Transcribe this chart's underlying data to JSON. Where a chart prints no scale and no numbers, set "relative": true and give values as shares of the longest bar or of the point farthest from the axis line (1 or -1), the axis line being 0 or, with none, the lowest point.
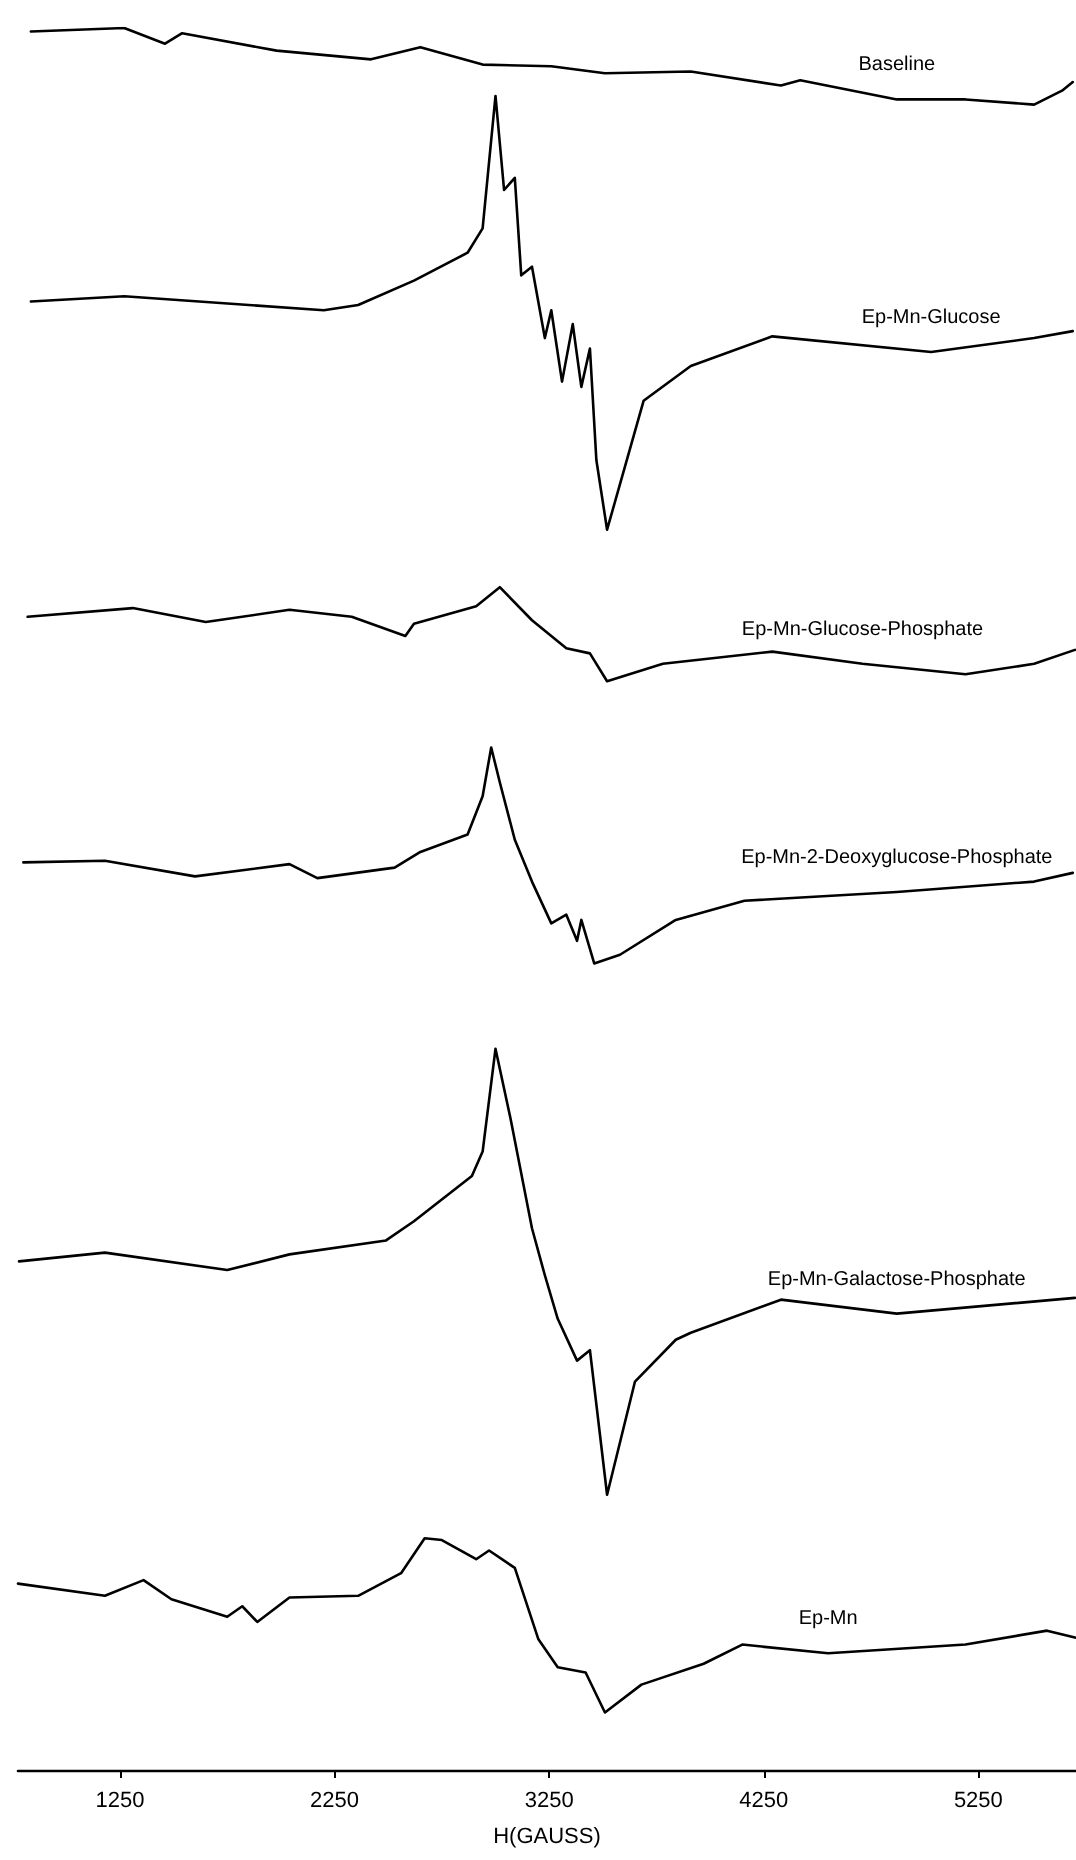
{
  "chart_data": {
    "type": "line",
    "relative": true,
    "xlabel": "H(GAUSS)",
    "xlim": [
      775,
      5705
    ],
    "xticks": [
      1250,
      2250,
      3250,
      4250,
      5250
    ],
    "legend": false,
    "grid": false,
    "marker": "none",
    "line_style": "solid",
    "series": [
      {
        "name": "Baseline",
        "color": "#000000",
        "x": [
          835,
          1270,
          1460,
          1540,
          1980,
          2420,
          2650,
          2940,
          3260,
          3510,
          3910,
          4330,
          4420,
          4870,
          5190,
          5510,
          5640,
          5690
        ],
        "values": [
          0.998,
          1.0,
          0.991,
          0.997,
          0.987,
          0.982,
          0.989,
          0.979,
          0.978,
          0.974,
          0.975,
          0.967,
          0.97,
          0.959,
          0.959,
          0.956,
          0.964,
          0.969
        ]
      },
      {
        "name": "Ep-Mn-Glucose",
        "color": "#000000",
        "x": [
          835,
          1270,
          2200,
          2360,
          2620,
          2870,
          2940,
          3000,
          3040,
          3090,
          3120,
          3170,
          3230,
          3260,
          3310,
          3360,
          3400,
          3440,
          3470,
          3520,
          3690,
          3910,
          4290,
          5030,
          5510,
          5690
        ],
        "values": [
          0.843,
          0.846,
          0.838,
          0.841,
          0.855,
          0.871,
          0.885,
          0.961,
          0.907,
          0.914,
          0.858,
          0.863,
          0.822,
          0.838,
          0.797,
          0.83,
          0.794,
          0.816,
          0.752,
          0.712,
          0.786,
          0.806,
          0.823,
          0.814,
          0.822,
          0.826
        ]
      },
      {
        "name": "Ep-Mn-Glucose-Phosphate",
        "color": "#000000",
        "x": [
          820,
          1310,
          1650,
          2040,
          2330,
          2580,
          2620,
          2910,
          3020,
          3170,
          3330,
          3440,
          3520,
          3780,
          4290,
          4710,
          5190,
          5510,
          5700
        ],
        "values": [
          0.662,
          0.667,
          0.659,
          0.666,
          0.662,
          0.651,
          0.658,
          0.668,
          0.679,
          0.66,
          0.644,
          0.641,
          0.625,
          0.635,
          0.642,
          0.635,
          0.629,
          0.635,
          0.643
        ]
      },
      {
        "name": "Ep-Mn-2-Deoxyglucose-Phosphate",
        "color": "#000000",
        "x": [
          800,
          1180,
          1600,
          2040,
          2170,
          2530,
          2650,
          2870,
          2940,
          2980,
          3020,
          3090,
          3170,
          3260,
          3330,
          3380,
          3400,
          3460,
          3580,
          3840,
          4160,
          4870,
          5510,
          5690
        ],
        "values": [
          0.521,
          0.522,
          0.513,
          0.52,
          0.512,
          0.518,
          0.527,
          0.537,
          0.559,
          0.587,
          0.567,
          0.534,
          0.51,
          0.486,
          0.491,
          0.476,
          0.488,
          0.463,
          0.468,
          0.488,
          0.499,
          0.504,
          0.51,
          0.515
        ]
      },
      {
        "name": "Ep-Mn-Galactose-Phosphate",
        "color": "#000000",
        "x": [
          780,
          1180,
          1750,
          2040,
          2490,
          2620,
          2890,
          2940,
          3000,
          3070,
          3170,
          3230,
          3290,
          3380,
          3440,
          3520,
          3650,
          3840,
          3910,
          4330,
          4870,
          5700
        ],
        "values": [
          0.292,
          0.297,
          0.287,
          0.296,
          0.304,
          0.315,
          0.341,
          0.355,
          0.414,
          0.374,
          0.311,
          0.284,
          0.259,
          0.235,
          0.241,
          0.158,
          0.223,
          0.247,
          0.251,
          0.27,
          0.262,
          0.271
        ]
      },
      {
        "name": "Ep-Mn",
        "color": "#000000",
        "x": [
          775,
          1180,
          1360,
          1490,
          1750,
          1820,
          1890,
          2040,
          2360,
          2560,
          2670,
          2750,
          2910,
          2970,
          3090,
          3200,
          3290,
          3420,
          3510,
          3680,
          3970,
          4150,
          4550,
          5190,
          5570,
          5700
        ],
        "values": [
          0.107,
          0.1,
          0.109,
          0.098,
          0.088,
          0.094,
          0.085,
          0.099,
          0.1,
          0.113,
          0.133,
          0.132,
          0.121,
          0.126,
          0.116,
          0.075,
          0.059,
          0.056,
          0.033,
          0.049,
          0.061,
          0.072,
          0.067,
          0.072,
          0.08,
          0.076
        ]
      }
    ]
  }
}
